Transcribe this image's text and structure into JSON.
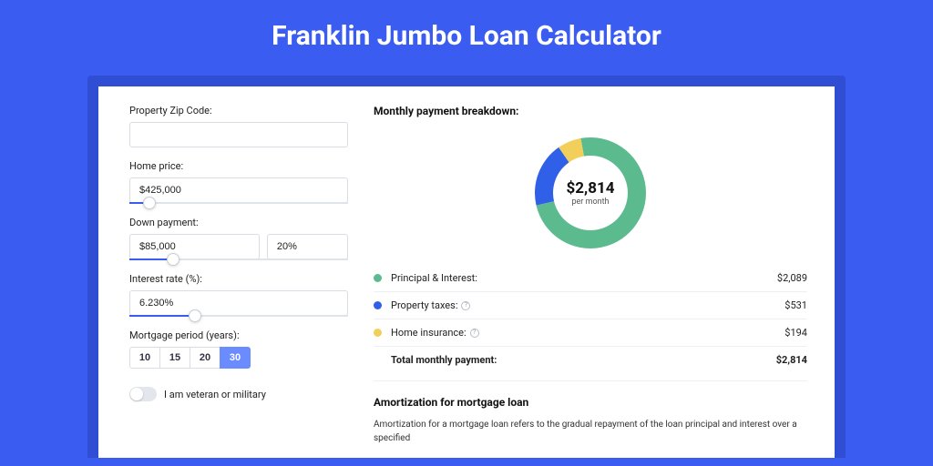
{
  "title": "Franklin Jumbo Loan Calculator",
  "colors": {
    "page_bg": "#3a5cf0",
    "shadow_bg": "#2f4ed4",
    "card_bg": "#ffffff",
    "slider_fill": "#3a5cf0",
    "period_active_bg": "#6b8cff"
  },
  "form": {
    "zip": {
      "label": "Property Zip Code:",
      "value": ""
    },
    "home_price": {
      "label": "Home price:",
      "value": "$425,000",
      "slider_pct": 9
    },
    "down_payment": {
      "label": "Down payment:",
      "amount": "$85,000",
      "percent": "20%",
      "slider_pct": 20
    },
    "interest_rate": {
      "label": "Interest rate (%):",
      "value": "6.230%",
      "slider_pct": 30
    },
    "mortgage_period": {
      "label": "Mortgage period (years):",
      "options": [
        "10",
        "15",
        "20",
        "30"
      ],
      "active": "30"
    },
    "veteran": {
      "label": "I am veteran or military",
      "on": false
    }
  },
  "breakdown": {
    "title": "Monthly payment breakdown:",
    "donut": {
      "type": "pie",
      "amount": "$2,814",
      "sub": "per month",
      "thickness": 20,
      "slices": [
        {
          "name": "Principal & Interest",
          "value": 2089,
          "pct": 74.2,
          "color": "#5cbb8e"
        },
        {
          "name": "Property taxes",
          "value": 531,
          "pct": 18.9,
          "color": "#3160e8"
        },
        {
          "name": "Home insurance",
          "value": 194,
          "pct": 6.9,
          "color": "#f2cf5b"
        }
      ],
      "start_angle_deg": -100
    },
    "rows": [
      {
        "dot": "#5cbb8e",
        "label": "Principal & Interest:",
        "info": false,
        "value": "$2,089"
      },
      {
        "dot": "#3160e8",
        "label": "Property taxes:",
        "info": true,
        "value": "$531"
      },
      {
        "dot": "#f2cf5b",
        "label": "Home insurance:",
        "info": true,
        "value": "$194"
      }
    ],
    "total": {
      "label": "Total monthly payment:",
      "value": "$2,814"
    }
  },
  "amortization": {
    "title": "Amortization for mortgage loan",
    "text": "Amortization for a mortgage loan refers to the gradual repayment of the loan principal and interest over a specified"
  }
}
